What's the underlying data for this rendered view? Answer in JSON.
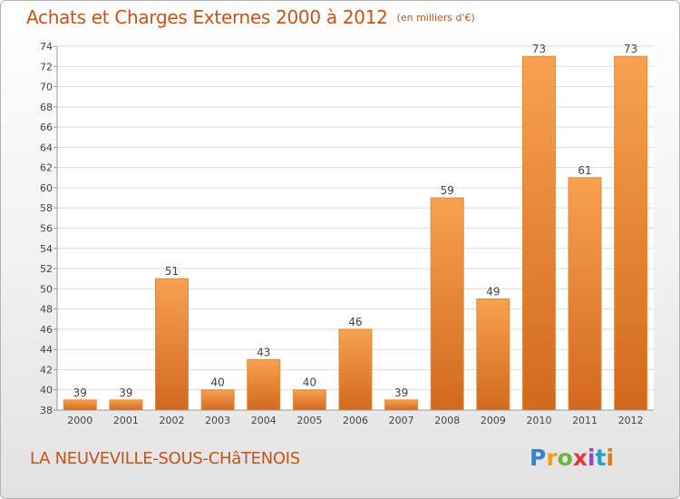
{
  "header": {
    "title": "Achats et Charges Externes 2000 à 2012",
    "subtitle": "(en milliers d'€)"
  },
  "footer": {
    "place_name": "LA NEUVEVILLE-SOUS-CHâTENOIS",
    "logo_text": "Proxiti"
  },
  "colors": {
    "title": "#c4541a",
    "bar_light": "#f7a24f",
    "bar_dark": "#d2691c",
    "logo": [
      "#3a7fd0",
      "#f0a020",
      "#6cb33f",
      "#e23b3b",
      "#8a4fc4",
      "#2aa0c8",
      "#e07a20"
    ]
  },
  "chart_data": {
    "type": "bar",
    "categories": [
      "2000",
      "2001",
      "2002",
      "2003",
      "2004",
      "2005",
      "2006",
      "2007",
      "2008",
      "2009",
      "2010",
      "2011",
      "2012"
    ],
    "values": [
      39,
      39,
      51,
      40,
      43,
      40,
      46,
      39,
      59,
      49,
      73,
      61,
      73
    ],
    "ylim": [
      38,
      74
    ],
    "yticks": [
      38,
      40,
      42,
      44,
      46,
      48,
      50,
      52,
      54,
      56,
      58,
      60,
      62,
      64,
      66,
      68,
      70,
      72,
      74
    ],
    "grid": true,
    "data_labels": true
  }
}
